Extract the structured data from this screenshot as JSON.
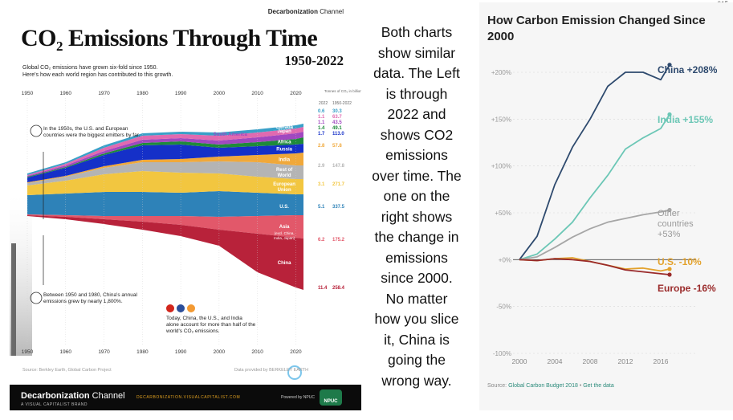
{
  "slide_number": "015",
  "left_chart": {
    "brand_top": "Decarbonization",
    "brand_top_light": "Channel",
    "title_main": "CO",
    "title_sub": "2",
    "title_rest": " Emissions Through Time",
    "years": "1950-2022",
    "subtitle_line1": "Global CO₂ emissions have grown six-fold since 1950.",
    "subtitle_line2": "Here's how each world region has contributed to this growth.",
    "col_header": "Tonnes of CO₂ in billions",
    "col_2022": "2022",
    "col_range": "1950-2022",
    "annotation_1950s": "In the 1950s, the U.S. and European countries were the biggest emitters by far.",
    "annotation_china": "Between 1950 and 1980, China's annual emissions grew by nearly 1,800%.",
    "annotation_today": "Today, China, the U.S., and India alone account for more than half of the world's CO₂ emissions.",
    "source": "Source: Berkley Earth, Global Carbon Project",
    "provided_by": "Data provided by BERKELEY EARTH",
    "bottom_brand": "Decarbonization",
    "bottom_brand_light": "Channel",
    "bottom_sub": "A VISUAL CAPITALIST BRAND",
    "bottom_url": "DECARBONIZATION.VISUALCAPITALIST.COM",
    "powered_by": "Powered by NPUC",
    "npuc_logo": "NPUC",
    "flags": [
      "china-flag",
      "us-flag",
      "india-flag"
    ]
  },
  "middle_text": [
    "Both charts",
    "show similar",
    "data. The Left",
    "is through",
    "2022 and",
    "shows CO2",
    "emissions",
    "over time. The",
    "one on the",
    "right shows",
    "the change in",
    "emissions",
    "since 2000.",
    "No matter",
    "how you slice",
    "it, China is",
    "going the",
    "wrong way."
  ],
  "right_chart": {
    "title": "How Carbon Emission Changed Since 2000",
    "source_prefix": "Source: ",
    "source_link": "Global Carbon Budget 2018",
    "source_sep": " • ",
    "source_data": "Get the data"
  },
  "chart_data": [
    {
      "type": "area",
      "x_ticks": [
        "1950",
        "1960",
        "1970",
        "1980",
        "1990",
        "2000",
        "2010",
        "2020"
      ],
      "xlim": [
        1950,
        2022
      ],
      "series": [
        {
          "name": "Canada",
          "value_2022": 0.6,
          "total_1950_2022": 30.3,
          "color": "#39a0c8"
        },
        {
          "name": "Japan",
          "value_2022": 1.1,
          "total_1950_2022": 63.7,
          "color": "#e06ab0"
        },
        {
          "name": "South America",
          "value_2022": 1.1,
          "total_1950_2022": 43.5,
          "color": "#a048c0"
        },
        {
          "name": "Africa",
          "value_2022": 1.4,
          "total_1950_2022": 49.1,
          "color": "#1e8a3a"
        },
        {
          "name": "Russia",
          "value_2022": 1.7,
          "total_1950_2022": 113.0,
          "color": "#1530c8"
        },
        {
          "name": "India",
          "value_2022": 2.8,
          "total_1950_2022": 57.8,
          "color": "#f0a83a"
        },
        {
          "name": "Rest of World",
          "value_2022": 2.9,
          "total_1950_2022": 147.8,
          "color": "#b4b4b4"
        },
        {
          "name": "European Union",
          "value_2022": 3.1,
          "total_1950_2022": 271.7,
          "color": "#f2c640"
        },
        {
          "name": "U.S.",
          "value_2022": 5.1,
          "total_1950_2022": 337.5,
          "color": "#2e82b8"
        },
        {
          "name": "Asia",
          "name_note": "(excl. China, India, Japan)",
          "value_2022": 6.2,
          "total_1950_2022": 175.2,
          "color": "#e2586a"
        },
        {
          "name": "China",
          "value_2022": 11.4,
          "total_1950_2022": 258.4,
          "color": "#b8223a"
        }
      ],
      "value_labels_2022": [
        "0.6",
        "1.1",
        "1.1",
        "1.4",
        "1.7",
        "2.8",
        "2.9",
        "3.1",
        "5.1",
        "6.2",
        "11.4"
      ],
      "total_labels": [
        "30.3",
        "63.7",
        "43.5",
        "49.1",
        "113.0",
        "57.8",
        "147.8",
        "271.7",
        "337.5",
        "175.2",
        "258.4"
      ]
    },
    {
      "type": "line",
      "x": [
        2000,
        2002,
        2004,
        2006,
        2008,
        2010,
        2012,
        2014,
        2016,
        2017
      ],
      "x_ticks": [
        "2000",
        "2004",
        "2008",
        "2012",
        "2016"
      ],
      "y_ticks": [
        "+200%",
        "+150%",
        "+100%",
        "+50%",
        "+0%",
        "-50%",
        "-100%"
      ],
      "ylim": [
        -100,
        200
      ],
      "series": [
        {
          "name": "China",
          "label": "China +208%",
          "values": [
            0,
            25,
            80,
            120,
            150,
            185,
            200,
            200,
            192,
            208
          ],
          "color": "#2e4a6e"
        },
        {
          "name": "India",
          "label": "India +155%",
          "values": [
            0,
            6,
            22,
            40,
            66,
            90,
            118,
            130,
            140,
            155
          ],
          "color": "#6cc7b6"
        },
        {
          "name": "Other countries",
          "label_lines": [
            "Other",
            "countries",
            "+53%"
          ],
          "values": [
            0,
            3,
            13,
            24,
            33,
            40,
            44,
            48,
            51,
            53
          ],
          "color": "#a6a6a6"
        },
        {
          "name": "U.S.",
          "label": "U.S. -10%",
          "values": [
            0,
            -1,
            1,
            2,
            -2,
            -6,
            -10,
            -9,
            -12,
            -10
          ],
          "color": "#e3a22c"
        },
        {
          "name": "Europe",
          "label": "Europe -16%",
          "values": [
            0,
            -1,
            1,
            0,
            -2,
            -6,
            -11,
            -13,
            -15,
            -16
          ],
          "color": "#9a2a2a"
        }
      ]
    }
  ]
}
